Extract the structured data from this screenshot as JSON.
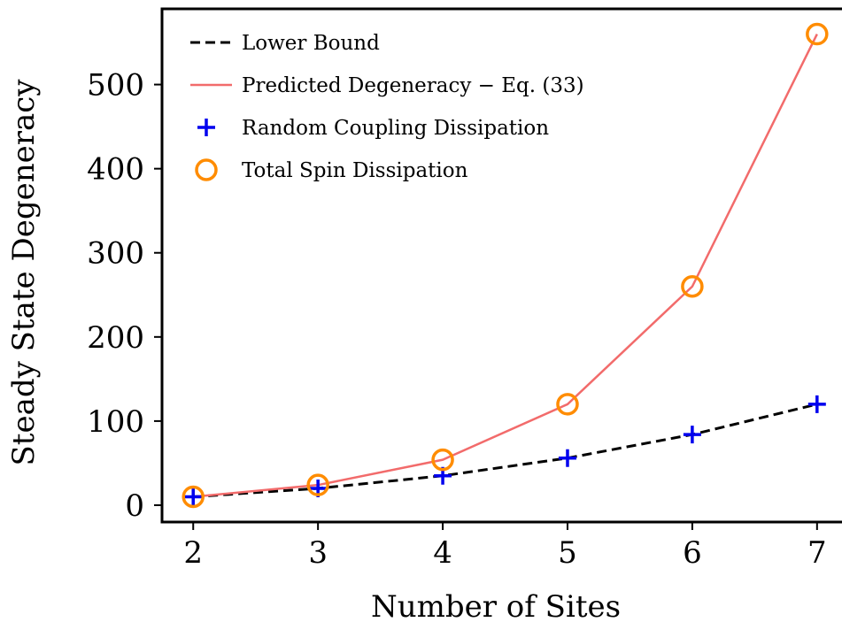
{
  "chart_data": {
    "type": "line",
    "xlabel": "Number of Sites",
    "ylabel": "Steady State Degeneracy",
    "x": [
      2,
      3,
      4,
      5,
      6,
      7
    ],
    "xlim": [
      1.75,
      7.2
    ],
    "ylim": [
      -20,
      590
    ],
    "xticks": [
      2,
      3,
      4,
      5,
      6,
      7
    ],
    "yticks": [
      0,
      100,
      200,
      300,
      400,
      500
    ],
    "grid": false,
    "legend_position": "top-left",
    "series": [
      {
        "name": "Lower Bound",
        "style": "dashed-line",
        "color": "#000000",
        "values": [
          10,
          20,
          35,
          56,
          84,
          120
        ]
      },
      {
        "name": "Predicted Degeneracy  −  Eq. (33)",
        "style": "line",
        "color": "#f26b6b",
        "values": [
          10,
          24,
          54,
          120,
          260,
          560
        ]
      },
      {
        "name": "Random Coupling Dissipation",
        "style": "plus-marker",
        "color": "#0000ee",
        "values": [
          10,
          20,
          35,
          56,
          84,
          120
        ]
      },
      {
        "name": "Total Spin Dissipation",
        "style": "circle-marker",
        "color": "#ff8c00",
        "values": [
          10,
          24,
          54,
          120,
          260,
          560
        ]
      }
    ]
  }
}
